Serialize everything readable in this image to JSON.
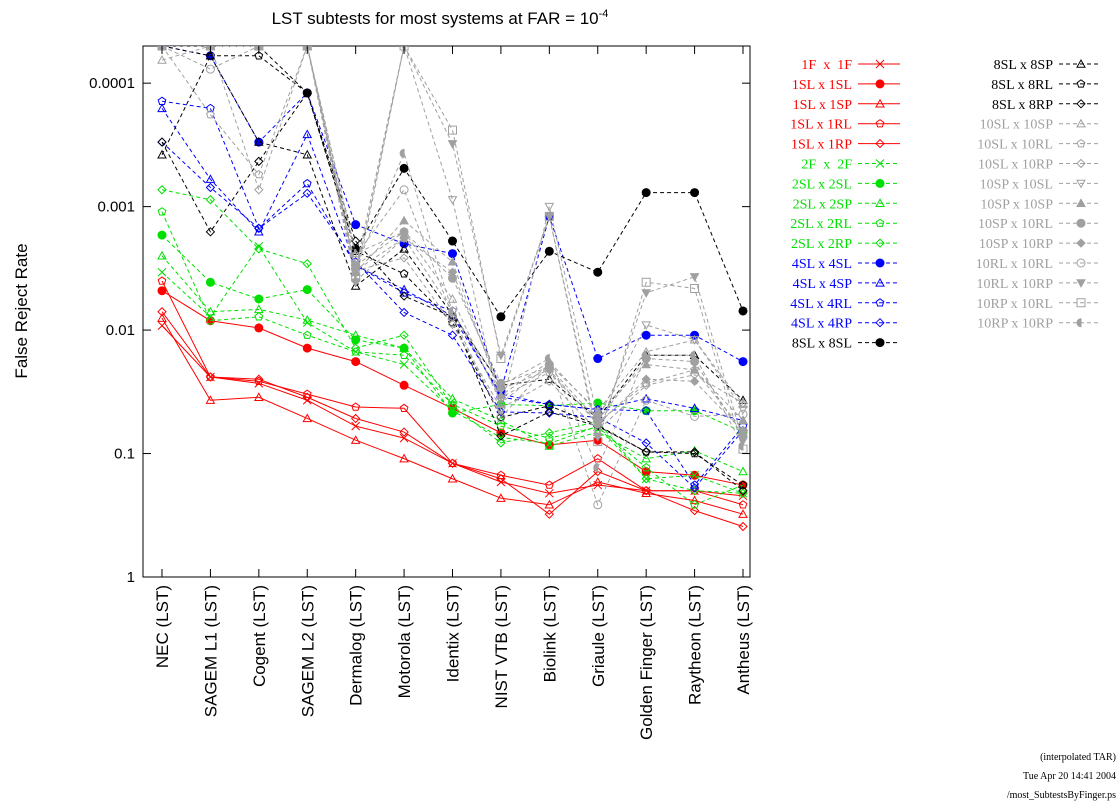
{
  "chart_data": {
    "type": "line",
    "title": "LST subtests for most systems at FAR = 10",
    "title_exponent": "-4",
    "y_label": "False Reject Rate",
    "log_y": true,
    "ylim": [
      1,
      5e-05
    ],
    "yticks": [
      0.0001,
      0.001,
      0.01,
      0.1,
      1
    ],
    "categories": [
      "NEC (LST)",
      "SAGEM L1 (LST)",
      "Cogent (LST)",
      "SAGEM L2 (LST)",
      "Dermalog (LST)",
      "Motorola (LST)",
      "Identix (LST)",
      "NIST VTB (LST)",
      "Biolink (LST)",
      "Griaule (LST)",
      "Golden Finger (LST)",
      "Raytheon (LST)",
      "Antheus (LST)"
    ],
    "series": [
      {
        "name": "1F  x  1F",
        "color": "#ff0000",
        "marker": "x",
        "dashed": false,
        "values": [
          0.0092,
          0.024,
          0.027,
          0.037,
          0.06,
          0.075,
          0.12,
          0.17,
          0.21,
          0.18,
          0.2,
          0.2,
          0.22
        ]
      },
      {
        "name": "1SL x 1SL",
        "color": "#ff0000",
        "marker": "circle-filled",
        "dashed": false,
        "values": [
          0.0048,
          0.0084,
          0.0096,
          0.014,
          0.018,
          0.028,
          0.043,
          0.068,
          0.085,
          0.078,
          0.14,
          0.15,
          0.18
        ]
      },
      {
        "name": "1SL x 1SP",
        "color": "#ff0000",
        "marker": "triangle",
        "dashed": false,
        "values": [
          0.008,
          0.037,
          0.035,
          0.052,
          0.078,
          0.11,
          0.16,
          0.23,
          0.26,
          0.17,
          0.21,
          0.24,
          0.31
        ]
      },
      {
        "name": "1SL x 1RL",
        "color": "#ff0000",
        "marker": "pentagon",
        "dashed": false,
        "values": [
          0.004,
          0.024,
          0.026,
          0.033,
          0.042,
          0.043,
          0.12,
          0.15,
          0.18,
          0.11,
          0.2,
          0.2,
          0.26
        ]
      },
      {
        "name": "1SL x 1RP",
        "color": "#ff0000",
        "marker": "diamond",
        "dashed": false,
        "values": [
          0.0071,
          0.024,
          0.025,
          0.035,
          0.052,
          0.067,
          0.12,
          0.16,
          0.31,
          0.14,
          0.2,
          0.29,
          0.39
        ]
      },
      {
        "name": "2F  x  2F",
        "color": "#00e000",
        "marker": "x",
        "dashed": true,
        "values": [
          0.0034,
          0.0078,
          0.0021,
          0.0087,
          0.015,
          0.019,
          0.045,
          0.074,
          0.083,
          0.06,
          0.16,
          0.15,
          0.21
        ]
      },
      {
        "name": "2SL x 2SL",
        "color": "#00e000",
        "marker": "circle-filled",
        "dashed": true,
        "values": [
          0.0017,
          0.0041,
          0.0056,
          0.0047,
          0.012,
          0.014,
          0.047,
          0.04,
          0.041,
          0.039,
          0.045,
          0.045,
          0.067
        ]
      },
      {
        "name": "2SL x 2SP",
        "color": "#00e000",
        "marker": "triangle",
        "dashed": true,
        "values": [
          0.0025,
          0.0071,
          0.0068,
          0.0083,
          0.011,
          0.014,
          0.036,
          0.054,
          0.087,
          0.067,
          0.11,
          0.095,
          0.14
        ]
      },
      {
        "name": "2SL x 2RL",
        "color": "#00e000",
        "marker": "pentagon",
        "dashed": true,
        "values": [
          0.0011,
          0.0084,
          0.0078,
          0.011,
          0.015,
          0.016,
          0.04,
          0.06,
          0.075,
          0.061,
          0.13,
          0.26,
          0.18
        ]
      },
      {
        "name": "2SL x 2RP",
        "color": "#00e000",
        "marker": "diamond",
        "dashed": true,
        "values": [
          0.00073,
          0.00088,
          0.0022,
          0.0029,
          0.014,
          0.011,
          0.041,
          0.082,
          0.068,
          0.055,
          0.16,
          0.2,
          0.21
        ]
      },
      {
        "name": "4SL x 4SL",
        "color": "#0000ff",
        "marker": "circle-filled",
        "dashed": true,
        "values": [
          5e-05,
          6e-05,
          0.0003,
          0.00012,
          0.0014,
          0.002,
          0.0024,
          0.031,
          0.0012,
          0.017,
          0.011,
          0.011,
          0.018
        ]
      },
      {
        "name": "4SL x 4SP",
        "color": "#0000ff",
        "marker": "triangle",
        "dashed": true,
        "values": [
          0.00016,
          0.0006,
          0.0016,
          0.00026,
          0.003,
          0.0047,
          0.0077,
          0.033,
          0.04,
          0.044,
          0.036,
          0.043,
          0.054
        ]
      },
      {
        "name": "4SL x 4RL",
        "color": "#0000ff",
        "marker": "pentagon",
        "dashed": true,
        "values": [
          0.00014,
          0.00016,
          0.0015,
          0.00065,
          0.003,
          0.005,
          0.007,
          0.035,
          0.04,
          0.044,
          0.045,
          0.18,
          0.06
        ]
      },
      {
        "name": "4SL x 4RP",
        "color": "#0000ff",
        "marker": "diamond",
        "dashed": true,
        "values": [
          0.0003,
          0.0007,
          0.0015,
          0.00078,
          0.0028,
          0.0072,
          0.011,
          0.046,
          0.047,
          0.051,
          0.082,
          0.19,
          0.065
        ]
      },
      {
        "name": "8SL x 8SL",
        "color": "#000000",
        "marker": "circle-filled",
        "dashed": true,
        "values": [
          5e-05,
          5e-05,
          5e-05,
          0.00012,
          0.0022,
          0.00049,
          0.0019,
          0.0078,
          0.0023,
          0.0034,
          0.00077,
          0.00077,
          0.007
        ]
      },
      {
        "name": "8SL x 8SP",
        "color": "#000000",
        "marker": "triangle",
        "dashed": true,
        "values": [
          0.00038,
          6e-05,
          0.0003,
          0.00038,
          0.0044,
          0.0022,
          0.0075,
          0.028,
          0.025,
          0.052,
          0.016,
          0.016,
          0.037
        ]
      },
      {
        "name": "8SL x 8RL",
        "color": "#000000",
        "marker": "pentagon",
        "dashed": true,
        "values": [
          5e-05,
          6e-05,
          6e-05,
          0.00012,
          0.0023,
          0.0035,
          0.0087,
          0.051,
          0.041,
          0.059,
          0.097,
          0.1,
          0.18
        ]
      },
      {
        "name": "8SL x 8RP",
        "color": "#000000",
        "marker": "diamond",
        "dashed": true,
        "values": [
          0.0003,
          0.0016,
          0.00043,
          0.00012,
          0.0019,
          0.0053,
          0.0078,
          0.072,
          0.046,
          0.06,
          0.097,
          0.097,
          0.2
        ]
      },
      {
        "name": "10SL x 10SP",
        "color": "#a0a0a0",
        "marker": "triangle",
        "dashed": true,
        "values": [
          6.5e-05,
          5e-05,
          5e-05,
          5e-05,
          0.0024,
          0.0016,
          0.0056,
          0.039,
          0.019,
          0.045,
          0.015,
          0.012,
          0.04
        ]
      },
      {
        "name": "10SL x 10RL",
        "color": "#a0a0a0",
        "marker": "pentagon",
        "dashed": true,
        "values": [
          5e-05,
          0.00018,
          0.00055,
          5e-05,
          0.0033,
          0.0018,
          0.007,
          0.035,
          0.022,
          0.056,
          0.027,
          0.021,
          0.065
        ]
      },
      {
        "name": "10SL x 10RP",
        "color": "#a0a0a0",
        "marker": "diamond",
        "dashed": true,
        "values": [
          5e-05,
          5e-05,
          0.00073,
          5e-05,
          0.0033,
          0.0026,
          0.009,
          0.043,
          0.026,
          0.065,
          0.028,
          0.023,
          0.039
        ]
      },
      {
        "name": "10SP x 10SL",
        "color": "#a0a0a0",
        "marker": "triangle-down",
        "dashed": true,
        "values": [
          5e-05,
          5e-05,
          5e-05,
          5e-05,
          0.0041,
          5e-05,
          0.00088,
          0.045,
          0.001,
          0.052,
          0.0091,
          0.012,
          0.044
        ]
      },
      {
        "name": "10SP x 10SP",
        "color": "#a0a0a0",
        "marker": "triangle-filled",
        "dashed": true,
        "values": [
          5e-05,
          5e-05,
          5e-05,
          5e-05,
          0.0034,
          0.0013,
          0.0028,
          0.034,
          0.018,
          0.047,
          0.019,
          0.021,
          0.054
        ]
      },
      {
        "name": "10SP x 10RL",
        "color": "#a0a0a0",
        "marker": "circle-filled",
        "dashed": true,
        "values": [
          5e-05,
          5e-05,
          5e-05,
          5e-05,
          0.003,
          0.0016,
          0.0038,
          0.027,
          0.02,
          0.054,
          0.017,
          0.018,
          0.072
        ]
      },
      {
        "name": "10SP x 10RP",
        "color": "#a0a0a0",
        "marker": "diamond-filled",
        "dashed": true,
        "values": [
          5e-05,
          5e-05,
          5e-05,
          5e-05,
          0.004,
          0.0018,
          0.0034,
          0.03,
          0.021,
          0.058,
          0.025,
          0.026,
          0.066
        ]
      },
      {
        "name": "10RL x 10RL",
        "color": "#a0a0a0",
        "marker": "circle",
        "dashed": true,
        "values": [
          5e-05,
          7.7e-05,
          5e-05,
          5e-05,
          0.0025,
          0.00073,
          0.0077,
          0.051,
          0.019,
          0.26,
          0.037,
          0.05,
          0.048
        ]
      },
      {
        "name": "10RL x 10RP",
        "color": "#a0a0a0",
        "marker": "triangle-down-filled",
        "dashed": true,
        "values": [
          5e-05,
          5e-05,
          5e-05,
          5e-05,
          0.0032,
          5e-05,
          0.00031,
          0.016,
          0.0012,
          0.073,
          0.005,
          0.0037,
          0.079
        ]
      },
      {
        "name": "10RP x 10RL",
        "color": "#a0a0a0",
        "marker": "square",
        "dashed": true,
        "values": [
          5e-05,
          5e-05,
          5e-05,
          5e-05,
          0.0037,
          5e-05,
          0.00024,
          0.017,
          0.0012,
          0.08,
          0.0041,
          0.0046,
          0.092
        ]
      },
      {
        "name": "10RP x 10RP",
        "color": "#a0a0a0",
        "marker": "circle-half",
        "dashed": true,
        "values": [
          5e-05,
          5e-05,
          5e-05,
          5e-05,
          0.0031,
          0.00037,
          0.0072,
          0.028,
          0.017,
          0.13,
          0.016,
          0.016,
          0.087
        ]
      }
    ],
    "footer": [
      "(interpolated TAR)",
      "Tue Apr 20 14:41 2004",
      "/most_SubtestsByFinger.ps"
    ]
  }
}
